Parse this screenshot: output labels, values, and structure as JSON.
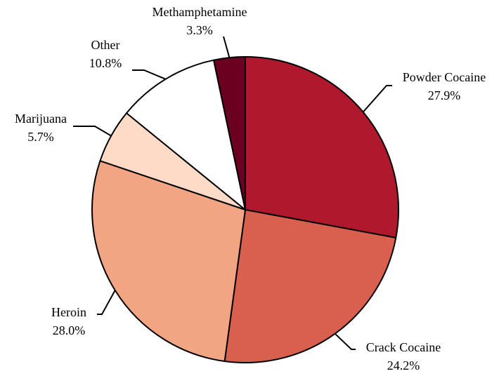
{
  "chart_data": {
    "type": "pie",
    "categories": [
      "Powder Cocaine",
      "Crack Cocaine",
      "Heroin",
      "Marijuana",
      "Other",
      "Methamphetamine"
    ],
    "values": [
      27.9,
      24.2,
      28.0,
      5.7,
      10.8,
      3.3
    ],
    "value_labels": [
      "27.9%",
      "24.2%",
      "28.0%",
      "5.7%",
      "10.8%",
      "3.3%"
    ],
    "colors": [
      "#b0192d",
      "#d9604e",
      "#f2a582",
      "#fddbc7",
      "#ffffff",
      "#6b0020"
    ]
  }
}
